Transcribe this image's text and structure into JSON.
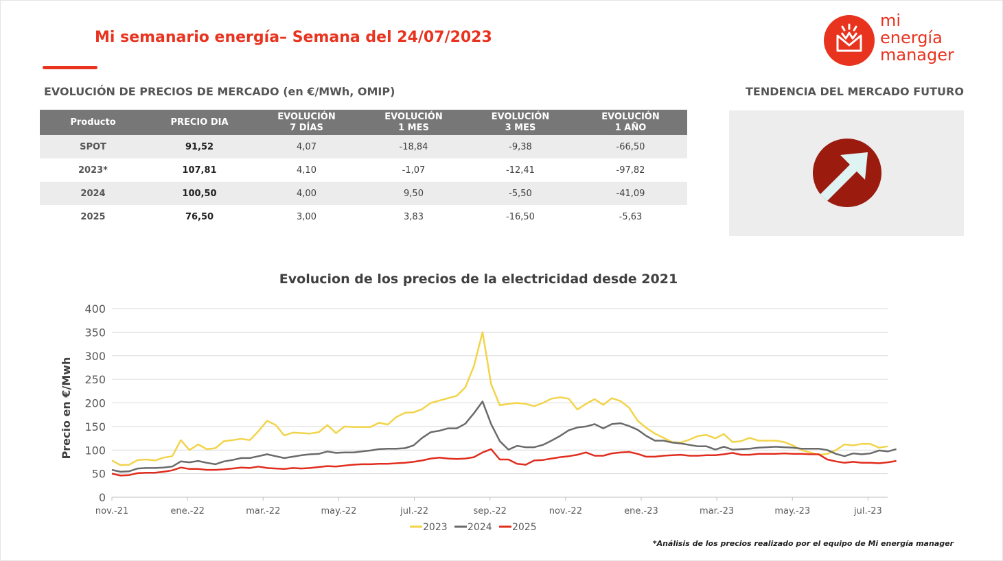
{
  "header": {
    "title": "Mi semanario energía– Semana del 24/07/2023",
    "logo_lines": [
      "mi",
      "energía",
      "manager"
    ]
  },
  "market": {
    "section_title": "EVOLUCIÓN DE PRECIOS DE MERCADO (en €/MWh, OMIP)",
    "columns": [
      {
        "line1": "Producto",
        "line2": ""
      },
      {
        "line1": "PRECIO DIA",
        "line2": ""
      },
      {
        "line1": "EVOLUCIÓN",
        "line2": "7 DÍAS"
      },
      {
        "line1": "EVOLUCIÓN",
        "line2": "1 MES"
      },
      {
        "line1": "EVOLUCIÓN",
        "line2": "3 MES"
      },
      {
        "line1": "EVOLUCIÓN",
        "line2": "1 AÑO"
      }
    ],
    "rows": [
      [
        "SPOT",
        "91,52",
        "4,07",
        "-18,84",
        "-9,38",
        "-66,50"
      ],
      [
        "2023*",
        "107,81",
        "4,10",
        "-1,07",
        "-12,41",
        "-97,82"
      ],
      [
        "2024",
        "100,50",
        "4,00",
        "9,50",
        "-5,50",
        "-41,09"
      ],
      [
        "2025",
        "76,50",
        "3,00",
        "3,83",
        "-16,50",
        "-5,63"
      ]
    ]
  },
  "trend": {
    "section_title": "TENDENCIA DEL MERCADO FUTURO",
    "direction": "up-arrow-icon",
    "circle_color": "#9b1b0f"
  },
  "chart_data": {
    "type": "line",
    "title": "Evolucion de los precios de la electricidad desde 2021",
    "ylabel": "Precio en €/Mwh",
    "xlabel": "",
    "ylim": [
      0,
      400
    ],
    "yticks": [
      0,
      50,
      100,
      150,
      200,
      250,
      300,
      350,
      400
    ],
    "xtick_labels": [
      "nov.-21",
      "ene.-22",
      "mar.-22",
      "may.-22",
      "jul.-22",
      "sep.-22",
      "nov.-22",
      "ene.-23",
      "mar.-23",
      "may.-23",
      "jul.-23"
    ],
    "grid": true,
    "legend_position": "bottom",
    "series": [
      {
        "name": "2023",
        "color": "#f2d44a",
        "values": [
          78,
          68,
          69,
          79,
          80,
          78,
          84,
          87,
          121,
          100,
          112,
          102,
          104,
          119,
          121,
          124,
          121,
          140,
          162,
          153,
          131,
          137,
          136,
          135,
          138,
          153,
          136,
          150,
          149,
          149,
          149,
          158,
          154,
          170,
          179,
          180,
          187,
          200,
          205,
          210,
          215,
          233,
          278,
          350,
          240,
          195,
          198,
          200,
          198,
          193,
          200,
          209,
          212,
          209,
          186,
          198,
          208,
          196,
          210,
          204,
          190,
          162,
          147,
          135,
          126,
          117,
          116,
          122,
          130,
          132,
          125,
          134,
          117,
          119,
          126,
          120,
          120,
          120,
          117,
          110,
          100,
          95,
          90,
          92,
          100,
          112,
          110,
          113,
          113,
          105,
          108
        ]
      },
      {
        "name": "2024",
        "color": "#6a6a6a",
        "values": [
          58,
          54,
          55,
          61,
          62,
          62,
          63,
          65,
          76,
          74,
          77,
          73,
          70,
          76,
          79,
          83,
          83,
          87,
          91,
          87,
          83,
          86,
          89,
          91,
          92,
          97,
          94,
          95,
          95,
          97,
          99,
          102,
          103,
          103,
          104,
          110,
          126,
          138,
          141,
          146,
          146,
          156,
          178,
          203,
          155,
          119,
          101,
          109,
          106,
          106,
          111,
          120,
          130,
          142,
          148,
          150,
          155,
          146,
          155,
          157,
          151,
          143,
          130,
          120,
          120,
          116,
          114,
          111,
          108,
          108,
          101,
          107,
          101,
          102,
          103,
          105,
          106,
          107,
          106,
          105,
          103,
          103,
          103,
          100,
          92,
          87,
          93,
          91,
          93,
          99,
          97,
          102
        ]
      },
      {
        "name": "2025",
        "color": "#e02d1e",
        "values": [
          50,
          46,
          47,
          51,
          52,
          52,
          54,
          57,
          63,
          60,
          60,
          58,
          58,
          59,
          61,
          63,
          62,
          65,
          62,
          61,
          60,
          62,
          61,
          62,
          64,
          66,
          65,
          67,
          69,
          70,
          70,
          71,
          71,
          72,
          73,
          75,
          78,
          82,
          84,
          82,
          81,
          82,
          85,
          95,
          102,
          80,
          80,
          71,
          69,
          78,
          79,
          82,
          85,
          87,
          90,
          95,
          88,
          88,
          93,
          95,
          96,
          92,
          86,
          86,
          88,
          89,
          90,
          88,
          88,
          89,
          89,
          91,
          94,
          90,
          90,
          92,
          92,
          92,
          93,
          92,
          92,
          91,
          91,
          80,
          76,
          73,
          75,
          73,
          73,
          72,
          74,
          77
        ]
      }
    ]
  },
  "footnote": "*Análisis de los precios realizado por el equipo de Mi energía manager"
}
